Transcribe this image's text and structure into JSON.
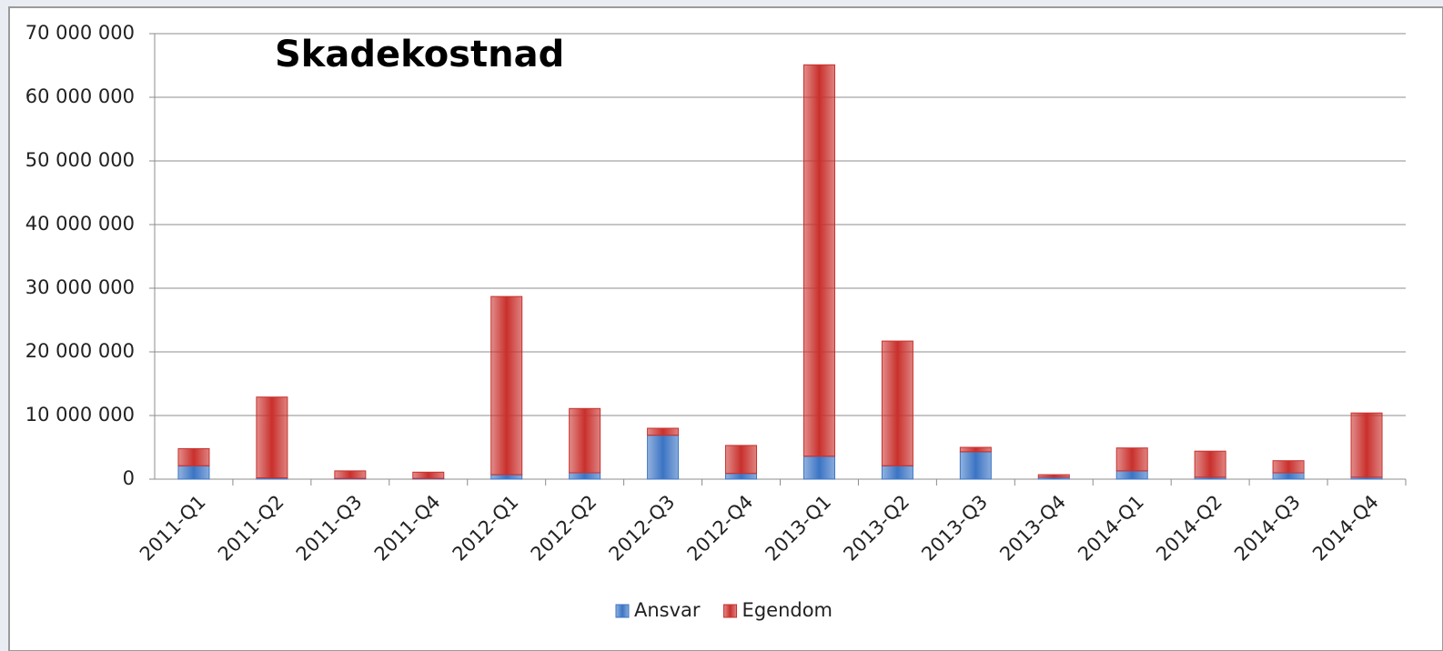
{
  "chart_data": {
    "type": "bar",
    "stacked": true,
    "title": "Skadekostnad",
    "categories": [
      "2011-Q1",
      "2011-Q2",
      "2011-Q3",
      "2011-Q4",
      "2012-Q1",
      "2012-Q2",
      "2012-Q3",
      "2012-Q4",
      "2013-Q1",
      "2013-Q2",
      "2013-Q3",
      "2013-Q4",
      "2014-Q1",
      "2014-Q2",
      "2014-Q3",
      "2014-Q4"
    ],
    "series": [
      {
        "name": "Ansvar",
        "color": "#3b74c4",
        "values": [
          2100000,
          200000,
          100000,
          100000,
          700000,
          1000000,
          6900000,
          900000,
          3600000,
          2100000,
          4300000,
          300000,
          1300000,
          300000,
          1000000,
          300000
        ]
      },
      {
        "name": "Egendom",
        "color": "#c9302c",
        "values": [
          2700000,
          12700000,
          1200000,
          1000000,
          28000000,
          10100000,
          1100000,
          4400000,
          61500000,
          19600000,
          700000,
          400000,
          3600000,
          4100000,
          1900000,
          10100000
        ]
      }
    ],
    "ylim": [
      0,
      70000000
    ],
    "yticks": [
      0,
      {
        "value": 10000000,
        "label": "10 000 000"
      },
      {
        "value": 20000000,
        "label": "20 000 000"
      },
      {
        "value": 30000000,
        "label": "30 000 000"
      },
      {
        "value": 40000000,
        "label": "40 000 000"
      },
      {
        "value": 50000000,
        "label": "50 000 000"
      },
      {
        "value": 60000000,
        "label": "60 000 000"
      },
      {
        "value": 70000000,
        "label": "70 000 000"
      }
    ],
    "grid": true,
    "legend": "bottom"
  }
}
